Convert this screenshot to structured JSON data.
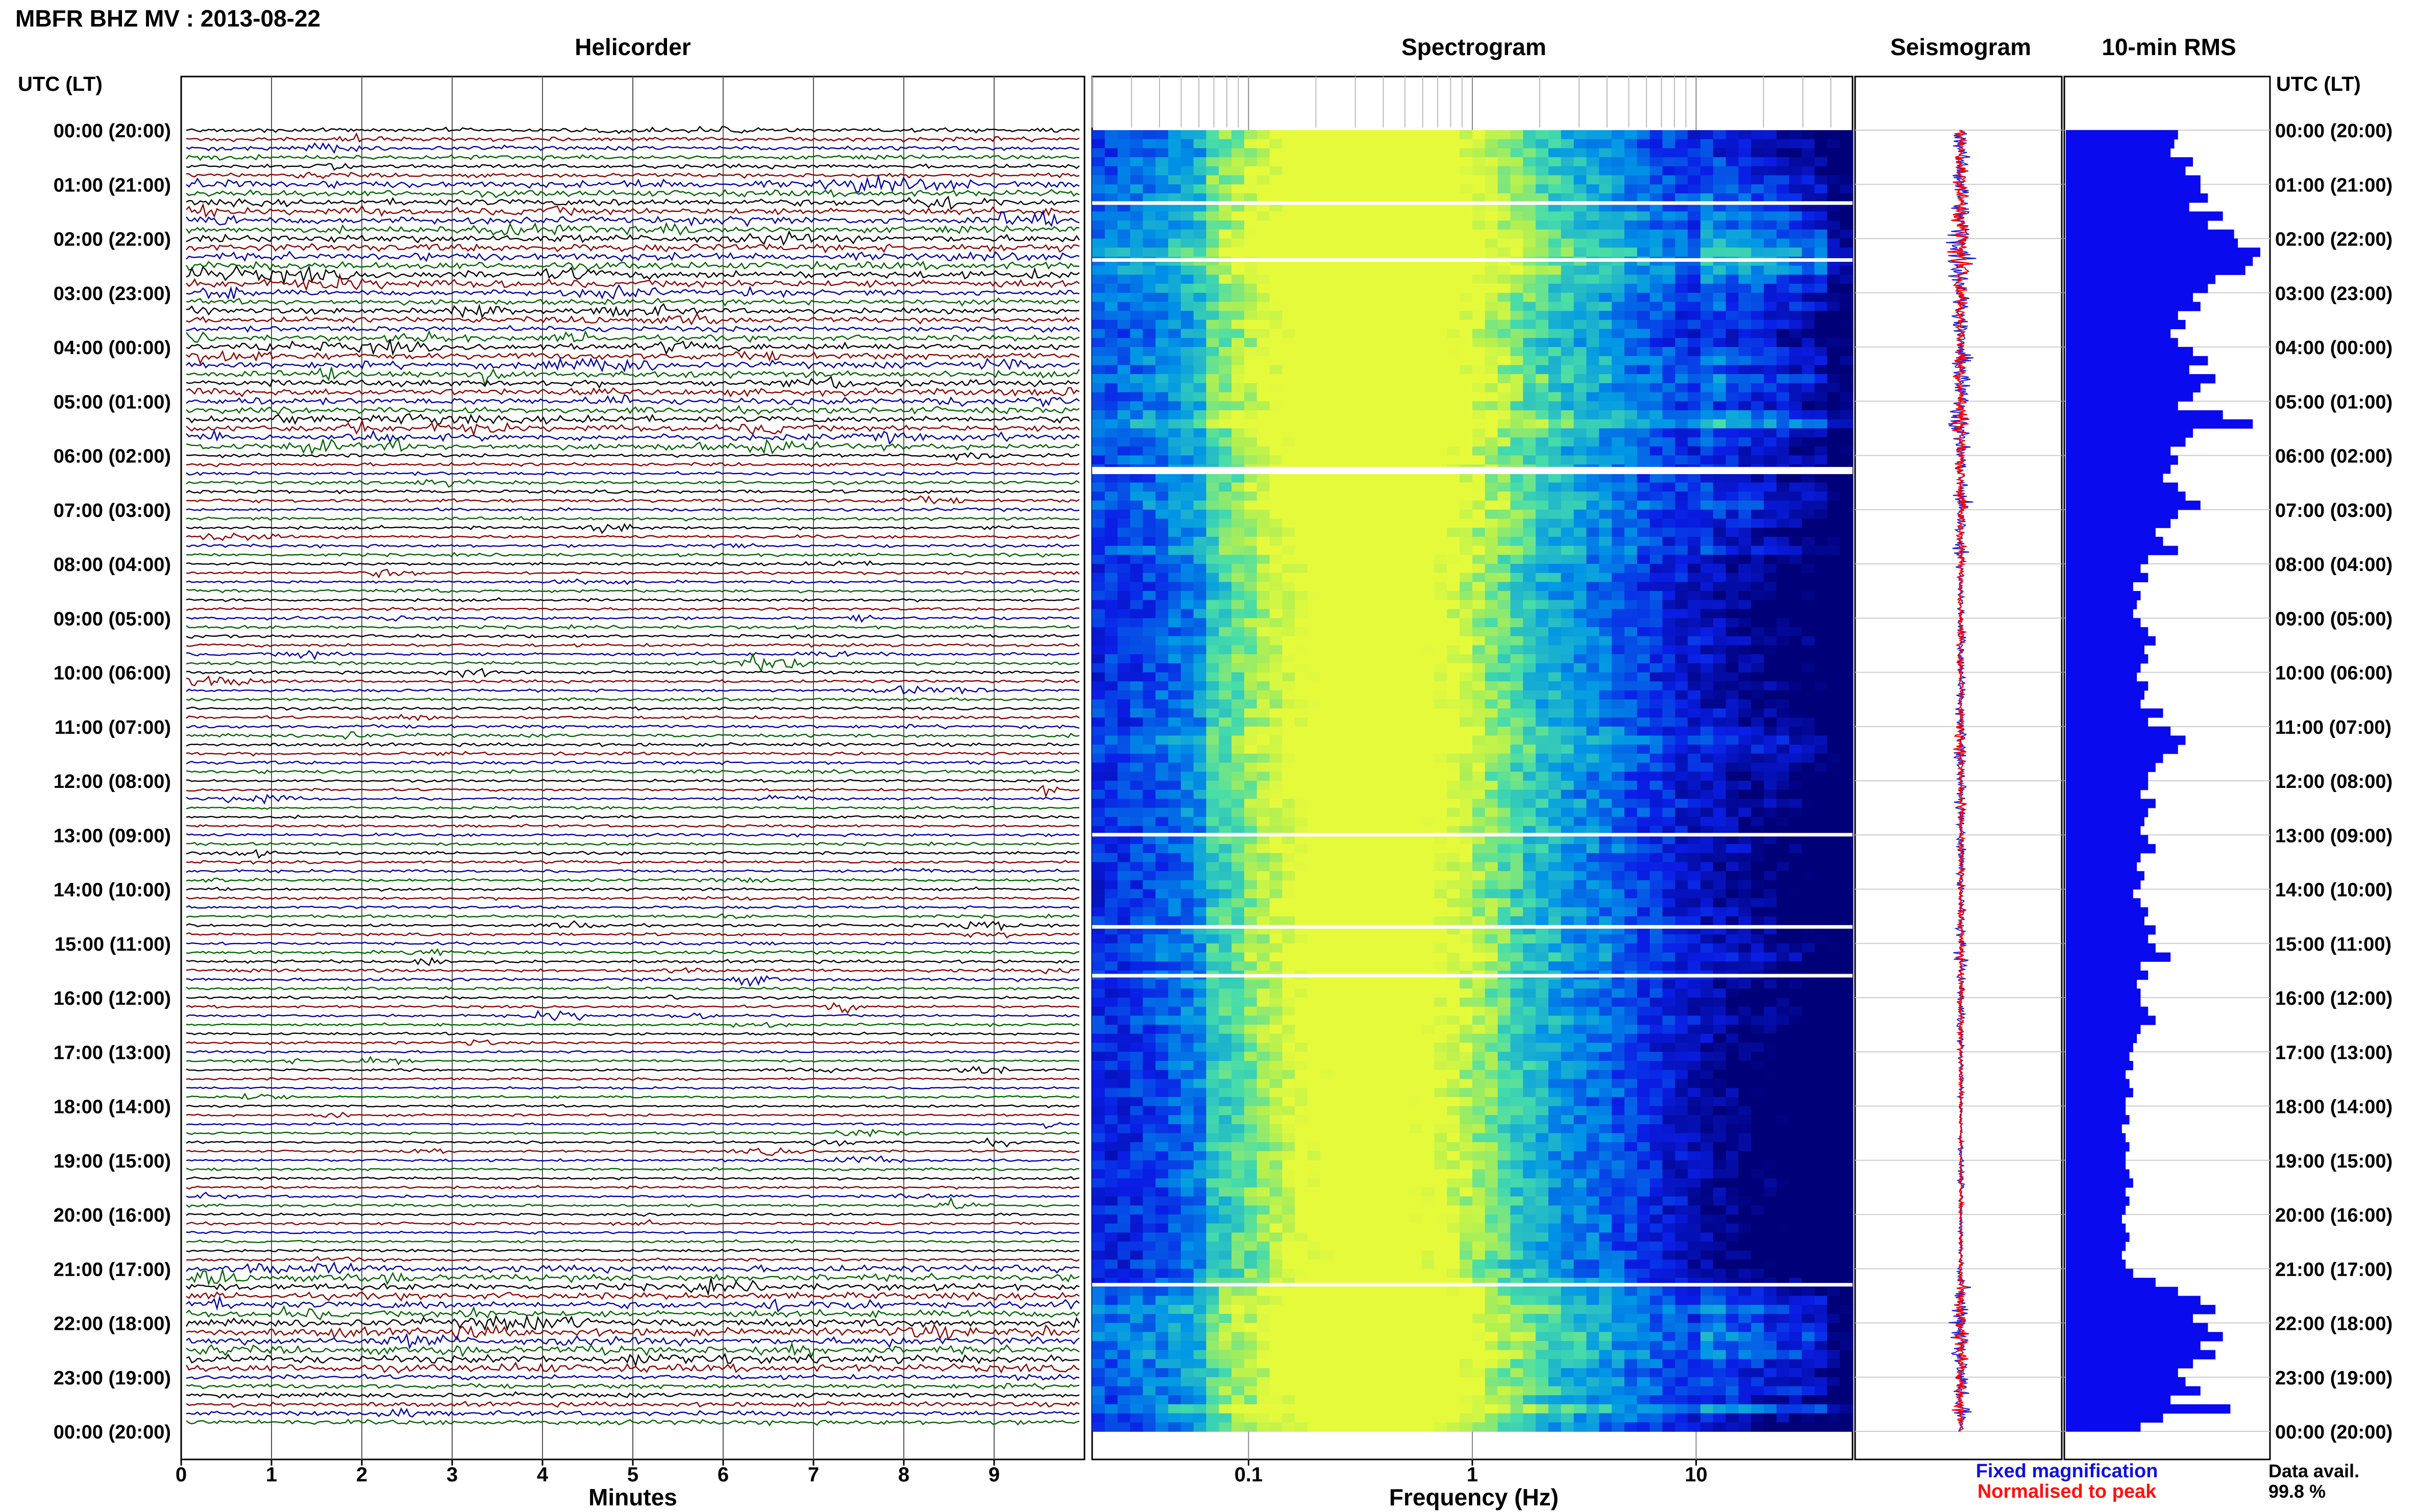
{
  "header": {
    "title": "MBFR BHZ MV : 2013-08-22",
    "utc_label_left": "UTC (LT)",
    "utc_label_right": "UTC (LT)"
  },
  "panels": {
    "helicorder": "Helicorder",
    "spectrogram": "Spectrogram",
    "seismogram": "Seismogram",
    "rms": "10-min RMS"
  },
  "axes": {
    "helicorder_xlabel": "Minutes",
    "spectrogram_xlabel": "Frequency (Hz)"
  },
  "legend": {
    "fixed": "Fixed magnification",
    "normalised": "Normalised to peak",
    "fixed_color": "#1010e0",
    "normalised_color": "#ff1010"
  },
  "data_avail": {
    "label": "Data avail.",
    "value": "99.8 %"
  },
  "colors": {
    "trace_cycle": [
      "#000000",
      "#8b0000",
      "#0000a0",
      "#006400"
    ],
    "rms_bar": "#0a0aee",
    "seismo_fixed": "#2020d0",
    "seismo_norm": "#ff0000",
    "grid": "#555555"
  },
  "chart_data": [
    {
      "type": "line",
      "name": "helicorder",
      "time_labels": [
        "00:00 (20:00)",
        "01:00 (21:00)",
        "02:00 (22:00)",
        "03:00 (23:00)",
        "04:00 (00:00)",
        "05:00 (01:00)",
        "06:00 (02:00)",
        "07:00 (03:00)",
        "08:00 (04:00)",
        "09:00 (05:00)",
        "10:00 (06:00)",
        "11:00 (07:00)",
        "12:00 (08:00)",
        "13:00 (09:00)",
        "14:00 (10:00)",
        "15:00 (11:00)",
        "16:00 (12:00)",
        "17:00 (13:00)",
        "18:00 (14:00)",
        "19:00 (15:00)",
        "20:00 (16:00)",
        "21:00 (17:00)",
        "22:00 (18:00)",
        "23:00 (19:00)",
        "00:00 (20:00)"
      ],
      "x_ticks": [
        "0",
        "1",
        "2",
        "3",
        "4",
        "5",
        "6",
        "7",
        "8",
        "9"
      ],
      "xlim": [
        0,
        10
      ],
      "traces_per_hour": 6,
      "hours": 24,
      "activity_per_hour": [
        1.6,
        2.6,
        3.0,
        2.2,
        2.6,
        2.5,
        1.3,
        1.2,
        1.1,
        1.2,
        1.1,
        1.3,
        1.0,
        1.1,
        1.1,
        1.2,
        1.0,
        0.9,
        0.9,
        1.0,
        1.0,
        2.6,
        3.0,
        1.8
      ]
    },
    {
      "type": "heatmap",
      "name": "spectrogram",
      "x_ticks": [
        "0.1",
        "1",
        "10"
      ],
      "x_scale": "log",
      "xlim": [
        0.02,
        50
      ],
      "rows": 144,
      "gaps_hours": [
        1.35,
        2.4,
        6.25,
        13.0,
        14.7,
        15.6,
        21.3
      ]
    },
    {
      "type": "line",
      "name": "seismogram",
      "series": [
        {
          "name": "Fixed magnification"
        },
        {
          "name": "Normalised to peak"
        }
      ]
    },
    {
      "type": "bar",
      "name": "10-min RMS",
      "orientation": "horizontal",
      "values": [
        0.3,
        0.29,
        0.28,
        0.34,
        0.32,
        0.36,
        0.36,
        0.38,
        0.33,
        0.42,
        0.38,
        0.45,
        0.46,
        0.52,
        0.5,
        0.48,
        0.4,
        0.38,
        0.34,
        0.36,
        0.3,
        0.32,
        0.28,
        0.3,
        0.34,
        0.38,
        0.33,
        0.4,
        0.36,
        0.34,
        0.3,
        0.42,
        0.5,
        0.34,
        0.32,
        0.28,
        0.3,
        0.28,
        0.26,
        0.3,
        0.32,
        0.36,
        0.3,
        0.28,
        0.24,
        0.26,
        0.3,
        0.22,
        0.2,
        0.22,
        0.18,
        0.2,
        0.19,
        0.18,
        0.2,
        0.22,
        0.24,
        0.21,
        0.22,
        0.2,
        0.19,
        0.22,
        0.21,
        0.2,
        0.26,
        0.22,
        0.28,
        0.32,
        0.3,
        0.26,
        0.24,
        0.22,
        0.22,
        0.2,
        0.24,
        0.22,
        0.21,
        0.2,
        0.22,
        0.24,
        0.2,
        0.19,
        0.21,
        0.2,
        0.18,
        0.2,
        0.22,
        0.21,
        0.24,
        0.22,
        0.24,
        0.28,
        0.2,
        0.22,
        0.19,
        0.2,
        0.2,
        0.22,
        0.24,
        0.2,
        0.19,
        0.18,
        0.17,
        0.18,
        0.16,
        0.17,
        0.18,
        0.16,
        0.16,
        0.17,
        0.15,
        0.16,
        0.17,
        0.16,
        0.16,
        0.17,
        0.18,
        0.16,
        0.17,
        0.16,
        0.15,
        0.16,
        0.17,
        0.16,
        0.15,
        0.16,
        0.18,
        0.24,
        0.3,
        0.36,
        0.4,
        0.34,
        0.38,
        0.42,
        0.36,
        0.4,
        0.34,
        0.3,
        0.32,
        0.36,
        0.28,
        0.44,
        0.26,
        0.2
      ],
      "xlim": [
        0,
        0.55
      ]
    }
  ]
}
